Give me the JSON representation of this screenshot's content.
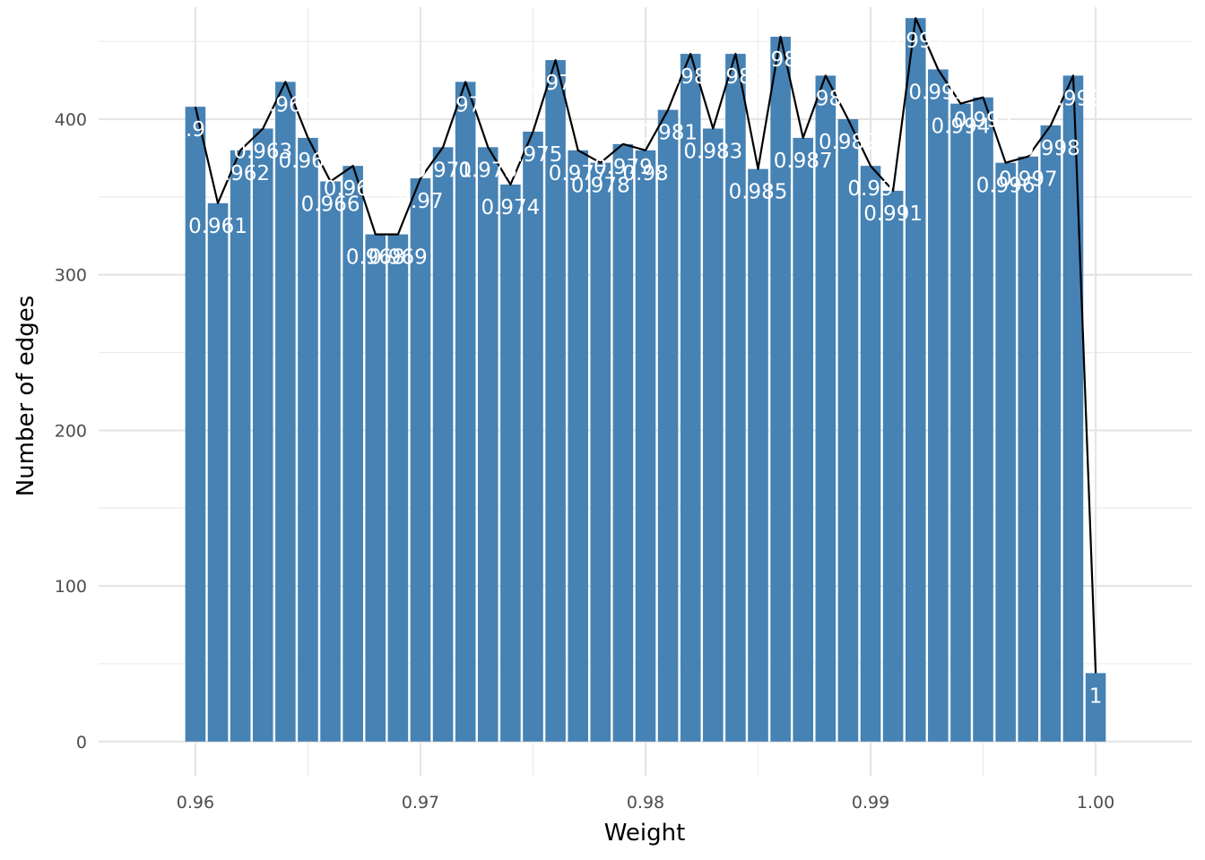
{
  "chart_data": {
    "type": "bar",
    "title": "",
    "xlabel": "Weight",
    "ylabel": "Number of edges",
    "xlim": [
      0.9557,
      1.0043
    ],
    "ylim": [
      -22,
      472
    ],
    "x_ticks": [
      0.96,
      0.97,
      0.98,
      0.99,
      1.0
    ],
    "x_tick_labels": [
      "0.96",
      "0.97",
      "0.98",
      "0.99",
      "1.00"
    ],
    "y_ticks": [
      0,
      100,
      200,
      300,
      400
    ],
    "y_tick_labels": [
      "0",
      "100",
      "200",
      "300",
      "400"
    ],
    "grid": true,
    "legend": "none",
    "bar_width": 0.0009,
    "bar_color": "#4682B4",
    "line_color": "#000000",
    "label_color": "#FFFFFF",
    "bars": [
      {
        "x": 0.96,
        "value": 408,
        "label": "0.96"
      },
      {
        "x": 0.961,
        "value": 346,
        "label": "0.961"
      },
      {
        "x": 0.962,
        "value": 380,
        "label": "0.962"
      },
      {
        "x": 0.963,
        "value": 394,
        "label": "0.963"
      },
      {
        "x": 0.964,
        "value": 424,
        "label": "0.964"
      },
      {
        "x": 0.965,
        "value": 388,
        "label": "0.965"
      },
      {
        "x": 0.966,
        "value": 360,
        "label": "0.966"
      },
      {
        "x": 0.967,
        "value": 370,
        "label": "0.967"
      },
      {
        "x": 0.968,
        "value": 326,
        "label": "0.968"
      },
      {
        "x": 0.969,
        "value": 326,
        "label": "0.969"
      },
      {
        "x": 0.97,
        "value": 362,
        "label": "0.97"
      },
      {
        "x": 0.971,
        "value": 382,
        "label": "0.971"
      },
      {
        "x": 0.972,
        "value": 424,
        "label": "0.972"
      },
      {
        "x": 0.973,
        "value": 382,
        "label": "0.973"
      },
      {
        "x": 0.974,
        "value": 358,
        "label": "0.974"
      },
      {
        "x": 0.975,
        "value": 392,
        "label": "0.975"
      },
      {
        "x": 0.976,
        "value": 438,
        "label": "0.976"
      },
      {
        "x": 0.977,
        "value": 380,
        "label": "0.977"
      },
      {
        "x": 0.978,
        "value": 372,
        "label": "0.978"
      },
      {
        "x": 0.979,
        "value": 384,
        "label": "0.979"
      },
      {
        "x": 0.98,
        "value": 380,
        "label": "0.98"
      },
      {
        "x": 0.981,
        "value": 406,
        "label": "0.981"
      },
      {
        "x": 0.982,
        "value": 442,
        "label": "0.982"
      },
      {
        "x": 0.983,
        "value": 394,
        "label": "0.983"
      },
      {
        "x": 0.984,
        "value": 442,
        "label": "0.984"
      },
      {
        "x": 0.985,
        "value": 368,
        "label": "0.985"
      },
      {
        "x": 0.986,
        "value": 453,
        "label": "0.986"
      },
      {
        "x": 0.987,
        "value": 388,
        "label": "0.987"
      },
      {
        "x": 0.988,
        "value": 428,
        "label": "0.988"
      },
      {
        "x": 0.989,
        "value": 400,
        "label": "0.989"
      },
      {
        "x": 0.99,
        "value": 370,
        "label": "0.99"
      },
      {
        "x": 0.991,
        "value": 354,
        "label": "0.991"
      },
      {
        "x": 0.992,
        "value": 465,
        "label": "0.992"
      },
      {
        "x": 0.993,
        "value": 432,
        "label": "0.993"
      },
      {
        "x": 0.994,
        "value": 410,
        "label": "0.994"
      },
      {
        "x": 0.995,
        "value": 414,
        "label": "0.995"
      },
      {
        "x": 0.996,
        "value": 372,
        "label": "0.996"
      },
      {
        "x": 0.997,
        "value": 376,
        "label": "0.997"
      },
      {
        "x": 0.998,
        "value": 396,
        "label": "0.998"
      },
      {
        "x": 0.999,
        "value": 428,
        "label": "0.999"
      },
      {
        "x": 1.0,
        "value": 44,
        "label": "1"
      }
    ]
  }
}
